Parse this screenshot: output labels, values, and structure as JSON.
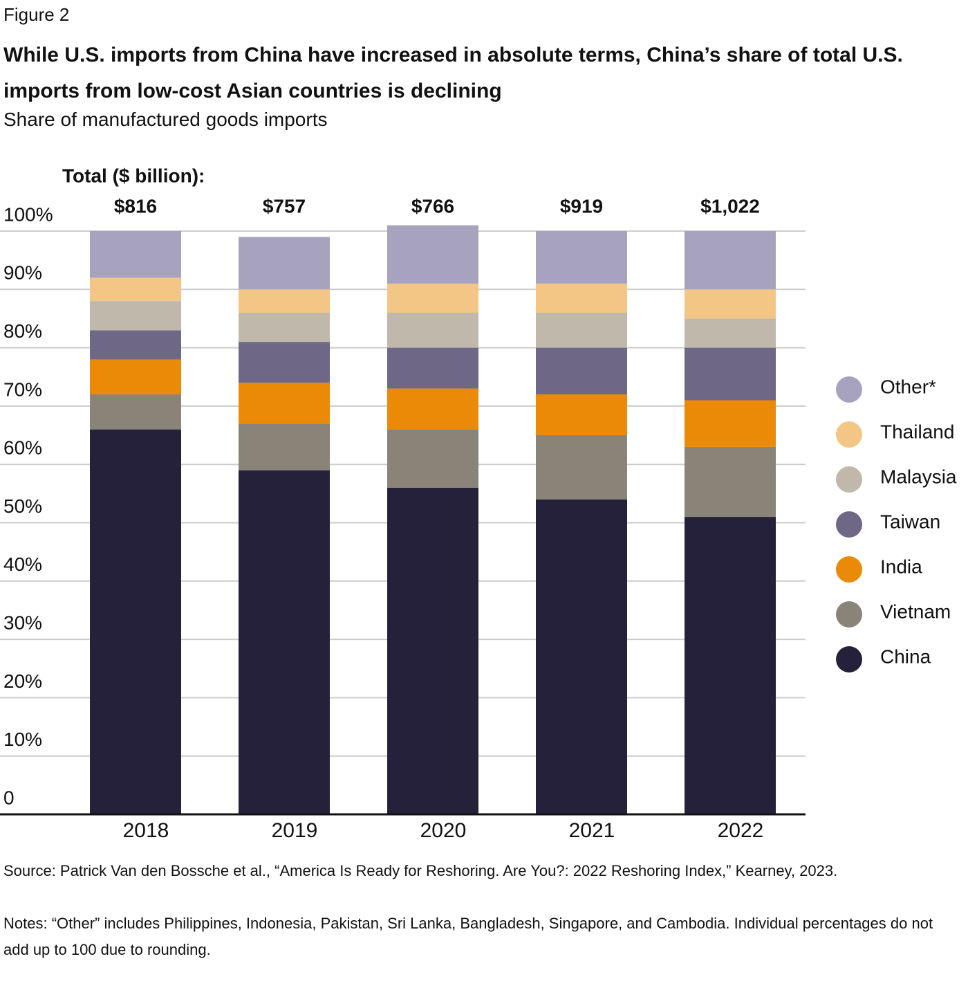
{
  "chart_data": {
    "type": "stacked_bar",
    "figure_label": "Figure 2",
    "title": "While U.S. imports from China have increased in absolute terms, China’s share of total U.S. imports from low-cost Asian countries is declining",
    "subtitle": "Share of manufactured goods imports",
    "categories": [
      "2018",
      "2019",
      "2020",
      "2021",
      "2022"
    ],
    "totals": {
      "label": "Total ($ billion):",
      "values": [
        816,
        757,
        766,
        919,
        1022
      ],
      "value_labels": [
        "$816",
        "$757",
        "$766",
        "$919",
        "$1,022"
      ]
    },
    "series": [
      {
        "name": "China",
        "color": "#26213b",
        "values": [
          66,
          59,
          56,
          54,
          51
        ]
      },
      {
        "name": "Vietnam",
        "color": "#8a8377",
        "values": [
          6,
          8,
          10,
          11,
          12
        ]
      },
      {
        "name": "India",
        "color": "#ea8a06",
        "values": [
          6,
          7,
          7,
          7,
          8
        ]
      },
      {
        "name": "Taiwan",
        "color": "#6e6786",
        "values": [
          5,
          7,
          7,
          8,
          9
        ]
      },
      {
        "name": "Malaysia",
        "color": "#bfb8ab",
        "values": [
          5,
          5,
          6,
          6,
          5
        ]
      },
      {
        "name": "Thailand",
        "color": "#f3c685",
        "values": [
          4,
          4,
          5,
          5,
          5
        ]
      },
      {
        "name": "Other*",
        "color": "#a7a3bf",
        "values": [
          8,
          9,
          10,
          9,
          10
        ]
      }
    ],
    "ylim": [
      0,
      100
    ],
    "yticks": [
      0,
      {
        "value": 10,
        "label": "10%"
      },
      {
        "value": 20,
        "label": "20%"
      },
      {
        "value": 30,
        "label": "30%"
      },
      {
        "value": 40,
        "label": "40%"
      },
      {
        "value": 50,
        "label": "50%"
      },
      {
        "value": 60,
        "label": "60%"
      },
      {
        "value": 70,
        "label": "70%"
      },
      {
        "value": 80,
        "label": "80%"
      },
      {
        "value": 90,
        "label": "90%"
      },
      {
        "value": 100,
        "label": "100%"
      }
    ],
    "grid": true,
    "legend": "right",
    "source": "Source: Patrick Van den Bossche et al., “America Is Ready for Reshoring. Are You?: 2022 Reshoring Index,” Kearney, 2023.",
    "notes": "Notes: “Other” includes Philippines, Indonesia, Pakistan, Sri Lanka, Bangladesh, Singapore, and Cambodia. Individual percentages do not add up to 100 due to rounding."
  }
}
